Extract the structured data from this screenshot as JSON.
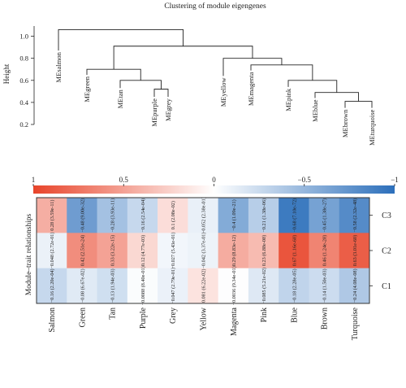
{
  "chart_data": [
    {
      "type": "dendrogram",
      "title": "Clustering of module eigengenes",
      "ylabel": "Height",
      "ylim": [
        0.2,
        1.1
      ],
      "yticks": [
        "0.2",
        "0.4",
        "0.6",
        "0.8",
        "1.0"
      ],
      "leaves": [
        "MEsalmon",
        "MEgreen",
        "MEtan",
        "MEpurple",
        "MEgrey",
        "MEyellow",
        "MEmagenta",
        "MEpink",
        "MEblue",
        "MEbrown",
        "MEturquoise"
      ],
      "leaf_heights": [
        0.87,
        0.65,
        0.53,
        0.45,
        0.45,
        0.64,
        0.69,
        0.54,
        0.44,
        0.35,
        0.35
      ],
      "merges": [
        {
          "a": "L3",
          "b": "L4",
          "h": 0.52
        },
        {
          "a": "L2",
          "b": "N0",
          "h": 0.6
        },
        {
          "a": "L1",
          "b": "N1",
          "h": 0.7
        },
        {
          "a": "L9",
          "b": "L10",
          "h": 0.41
        },
        {
          "a": "L8",
          "b": "N3",
          "h": 0.49
        },
        {
          "a": "L7",
          "b": "N4",
          "h": 0.6
        },
        {
          "a": "L6",
          "b": "N5",
          "h": 0.74
        },
        {
          "a": "L5",
          "b": "N6",
          "h": 0.8
        },
        {
          "a": "N2",
          "b": "N7",
          "h": 0.91
        },
        {
          "a": "L0",
          "b": "N8",
          "h": 1.06
        }
      ]
    },
    {
      "type": "heatmap",
      "ylabel": "Module–trait relationships",
      "colorbar": {
        "min": -1,
        "max": 1,
        "ticks": [
          "1",
          "0.5",
          "0",
          "−0.5",
          "−1"
        ],
        "low_color": "#2c6fbb",
        "mid_color": "#ffffff",
        "high_color": "#e8442a"
      },
      "columns": [
        "Salmon",
        "Green",
        "Tan",
        "Purple",
        "Grey",
        "Yellow",
        "Magenta",
        "Pink",
        "Blue",
        "Brown",
        "Turquoise"
      ],
      "column_label_colors": [
        "#222222",
        "#222222",
        "#222222",
        "#222222",
        "#222222",
        "#222222",
        "#222222",
        "#222222",
        "#3b4fb8",
        "#222222",
        "#222222"
      ],
      "rows": [
        "C3",
        "C2",
        "C1"
      ],
      "values": [
        [
          0.28,
          -0.48,
          -0.28,
          -0.16,
          0.1,
          -0.052,
          -0.4,
          -0.21,
          -0.68,
          -0.45,
          -0.58
        ],
        [
          -0.048,
          0.42,
          0.33,
          0.12,
          -0.027,
          -0.042,
          0.29,
          0.23,
          0.67,
          0.46,
          0.63
        ],
        [
          -0.16,
          -0.08,
          -0.13,
          -0.0088,
          -0.047,
          0.081,
          -0.0036,
          -0.085,
          -0.18,
          -0.14,
          -0.24
        ]
      ],
      "cell_labels": [
        [
          "0.28 (3.59e-11)",
          "−0.48 (9.00e-32)",
          "−0.28 (3.93e-11)",
          "−0.16 (2.54e-04)",
          "0.1 (2.08e-02)",
          "−0.052 (2.38e-01)",
          "−0.4 (1.09e-21)",
          "−0.21 (1.38e-06)",
          "−0.68 (7.10e-72)",
          "−0.45 (1.38e-27)",
          "−0.58 (2.32e-48)"
        ],
        [
          "−0.048 (2.72e-01)",
          "0.42 (2.51e-24)",
          "0.33 (3.22e-15)",
          "0.12 (4.77e-03)",
          "−0.027 (5.43e-01)",
          "−0.042 (3.37e-01)",
          "0.29 (8.83e-12)",
          "0.23 (6.88e-08)",
          "0.67 (1.16e-68)",
          "0.46 (1.24e-28)",
          "0.63 (3.01e-60)"
        ],
        [
          "−0.16 (2.20e-04)",
          "−0.08 (6.67e-02)",
          "−0.13 (1.94e-03)",
          "−0.0088 (8.40e-01)",
          "−0.047 (2.79e-01)",
          "0.081 (6.22e-02)",
          "−0.0036 (9.34e-01)",
          "−0.085 (5.21e-02)",
          "−0.18 (2.28e-05)",
          "−0.14 (1.50e-03)",
          "−0.24 (4.08e-08)"
        ]
      ]
    }
  ]
}
